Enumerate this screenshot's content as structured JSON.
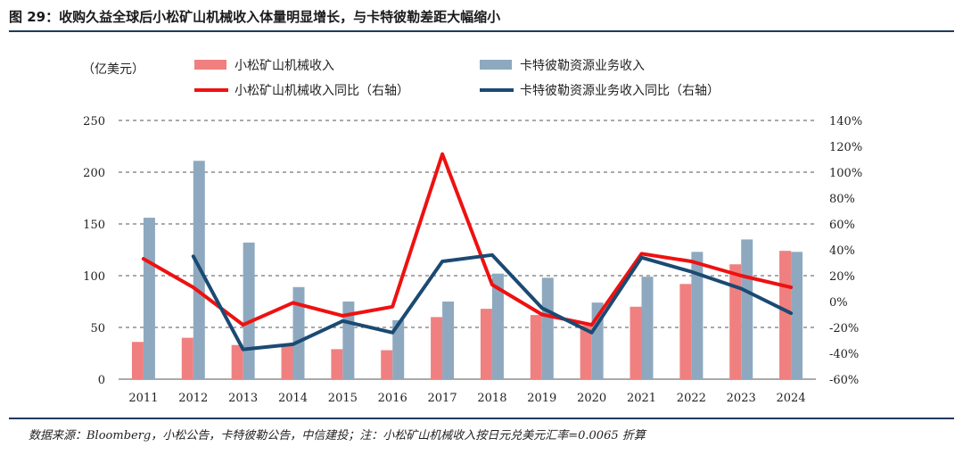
{
  "title": "图 29：收购久益全球后小松矿山机械收入体量明显增长，与卡特彼勒差距大幅缩小",
  "source": "数据来源：Bloomberg，小松公告，卡特彼勒公告，中信建投；注：小松矿山机械收入按日元兑美元汇率=0.0065 折算",
  "chart_data": {
    "type": "bar",
    "left_unit": "（亿美元）",
    "categories": [
      "2011",
      "2012",
      "2013",
      "2014",
      "2015",
      "2016",
      "2017",
      "2018",
      "2019",
      "2020",
      "2021",
      "2022",
      "2023",
      "2024"
    ],
    "ylim_left": [
      0,
      250
    ],
    "yticks_left": [
      0,
      50,
      100,
      150,
      200,
      250
    ],
    "ylim_right": [
      -60,
      140
    ],
    "yticks_right": [
      "-60%",
      "-40%",
      "-20%",
      "0%",
      "20%",
      "40%",
      "60%",
      "80%",
      "100%",
      "120%",
      "140%"
    ],
    "grid": "dashed horizontal",
    "legend_position": "top",
    "series": [
      {
        "name": "小松矿山机械收入",
        "type": "bar",
        "axis": "left",
        "color": "#f08080",
        "values": [
          36,
          40,
          33,
          33,
          29,
          28,
          60,
          68,
          62,
          52,
          70,
          92,
          111,
          124
        ]
      },
      {
        "name": "卡特彼勒资源业务收入",
        "type": "bar",
        "axis": "left",
        "color": "#8ea9bf",
        "values": [
          156,
          211,
          132,
          89,
          75,
          57,
          75,
          102,
          98,
          74,
          99,
          123,
          135,
          123
        ]
      },
      {
        "name": "小松矿山机械收入同比（右轴）",
        "type": "line",
        "axis": "right",
        "color": "#ee1111",
        "values": [
          33,
          11,
          -18,
          -1,
          -11,
          -4,
          114,
          13,
          -10,
          -18,
          37,
          31,
          20,
          11
        ]
      },
      {
        "name": "卡特彼勒资源业务收入同比（右轴）",
        "type": "line",
        "axis": "right",
        "color": "#1b4a72",
        "values": [
          null,
          35,
          -37,
          -33,
          -15,
          -24,
          31,
          36,
          -5,
          -24,
          34,
          23,
          10,
          -9
        ]
      }
    ]
  }
}
